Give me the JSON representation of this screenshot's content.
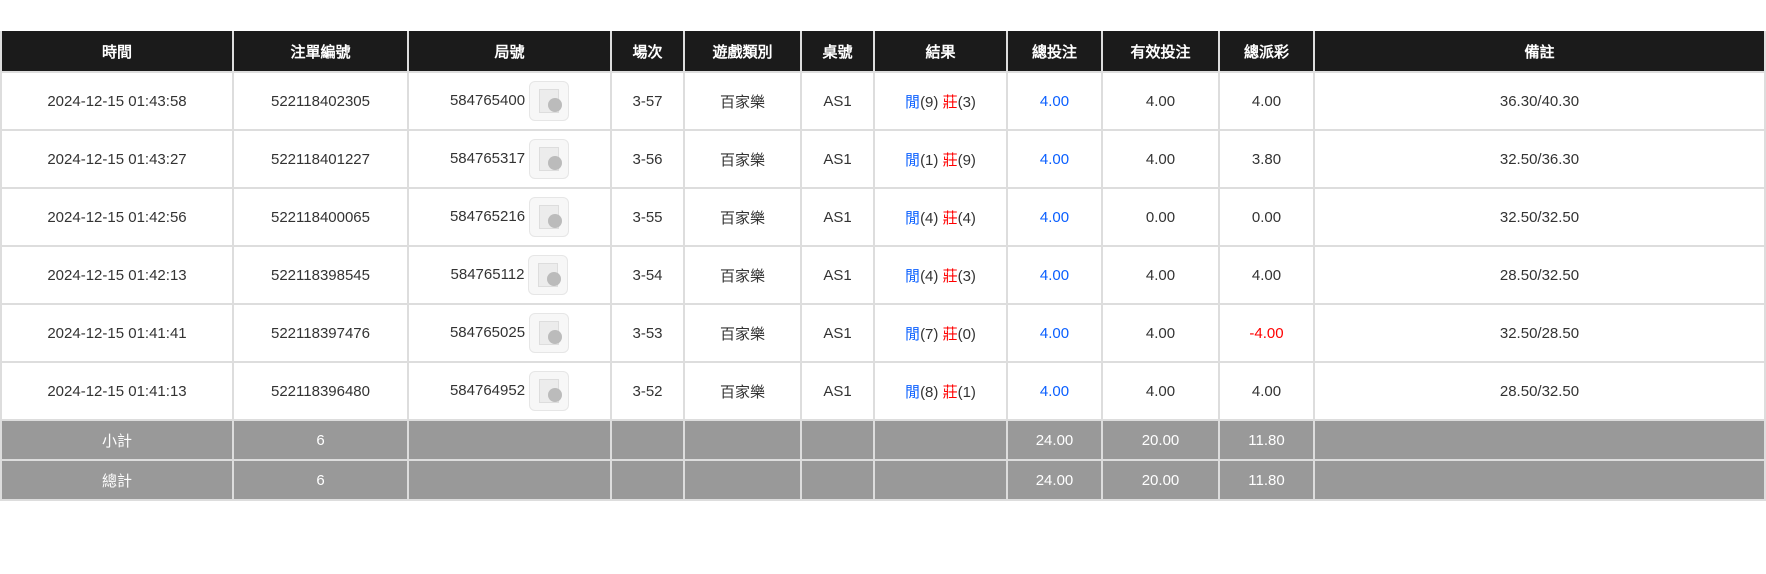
{
  "headers": [
    "時間",
    "注單編號",
    "局號",
    "場次",
    "遊戲類別",
    "桌號",
    "結果",
    "總投注",
    "有效投注",
    "總派彩",
    "備註"
  ],
  "rows": [
    {
      "time": "2024-12-15 01:43:58",
      "bet_id": "522118402305",
      "round": "584765400",
      "shoe": "3-57",
      "game": "百家樂",
      "table": "AS1",
      "player_label": "閒",
      "player": "(9)",
      "banker_label": "莊",
      "banker": "(3)",
      "total": "4.00",
      "valid": "4.00",
      "payout": "4.00",
      "payout_negative": false,
      "note": "36.30/40.30"
    },
    {
      "time": "2024-12-15 01:43:27",
      "bet_id": "522118401227",
      "round": "584765317",
      "shoe": "3-56",
      "game": "百家樂",
      "table": "AS1",
      "player_label": "閒",
      "player": "(1)",
      "banker_label": "莊",
      "banker": "(9)",
      "total": "4.00",
      "valid": "4.00",
      "payout": "3.80",
      "payout_negative": false,
      "note": "32.50/36.30"
    },
    {
      "time": "2024-12-15 01:42:56",
      "bet_id": "522118400065",
      "round": "584765216",
      "shoe": "3-55",
      "game": "百家樂",
      "table": "AS1",
      "player_label": "閒",
      "player": "(4)",
      "banker_label": "莊",
      "banker": "(4)",
      "total": "4.00",
      "valid": "0.00",
      "payout": "0.00",
      "payout_negative": false,
      "note": "32.50/32.50"
    },
    {
      "time": "2024-12-15 01:42:13",
      "bet_id": "522118398545",
      "round": "584765112",
      "shoe": "3-54",
      "game": "百家樂",
      "table": "AS1",
      "player_label": "閒",
      "player": "(4)",
      "banker_label": "莊",
      "banker": "(3)",
      "total": "4.00",
      "valid": "4.00",
      "payout": "4.00",
      "payout_negative": false,
      "note": "28.50/32.50"
    },
    {
      "time": "2024-12-15 01:41:41",
      "bet_id": "522118397476",
      "round": "584765025",
      "shoe": "3-53",
      "game": "百家樂",
      "table": "AS1",
      "player_label": "閒",
      "player": "(7)",
      "banker_label": "莊",
      "banker": "(0)",
      "total": "4.00",
      "valid": "4.00",
      "payout": "-4.00",
      "payout_negative": true,
      "note": "32.50/28.50"
    },
    {
      "time": "2024-12-15 01:41:13",
      "bet_id": "522118396480",
      "round": "584764952",
      "shoe": "3-52",
      "game": "百家樂",
      "table": "AS1",
      "player_label": "閒",
      "player": "(8)",
      "banker_label": "莊",
      "banker": "(1)",
      "total": "4.00",
      "valid": "4.00",
      "payout": "4.00",
      "payout_negative": false,
      "note": "28.50/32.50"
    }
  ],
  "subtotal": {
    "label": "小計",
    "count": "6",
    "total": "24.00",
    "valid": "20.00",
    "payout": "11.80"
  },
  "grandtotal": {
    "label": "總計",
    "count": "6",
    "total": "24.00",
    "valid": "20.00",
    "payout": "11.80"
  },
  "colors": {
    "player": "#0a5fff",
    "banker": "#ff0000",
    "header_bg": "#1b1b1b",
    "summary_bg": "#999999"
  }
}
